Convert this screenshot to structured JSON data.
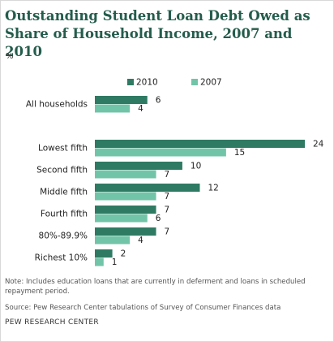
{
  "chart_data": {
    "type": "bar",
    "orientation": "horizontal",
    "title": "Outstanding Student Loan Debt Owed as Share of Household Income, 2007 and 2010",
    "subtitle": "%",
    "categories": [
      "All households",
      "Lowest fifth",
      "Second fifth",
      "Middle fifth",
      "Fourth fifth",
      "80%-89.9%",
      "Richest 10%"
    ],
    "series": [
      {
        "name": "2010",
        "color": "#2e7a62",
        "values": [
          6,
          24,
          10,
          12,
          7,
          7,
          2
        ]
      },
      {
        "name": "2007",
        "color": "#72c4a9",
        "values": [
          4,
          15,
          7,
          7,
          6,
          4,
          1
        ]
      }
    ],
    "note": "Note: Includes education loans that are currently in deferment and loans in scheduled repayment period.",
    "source": "Source: Pew Research Center tabulations of Survey of Consumer Finances data",
    "credit": "PEW RESEARCH CENTER"
  }
}
